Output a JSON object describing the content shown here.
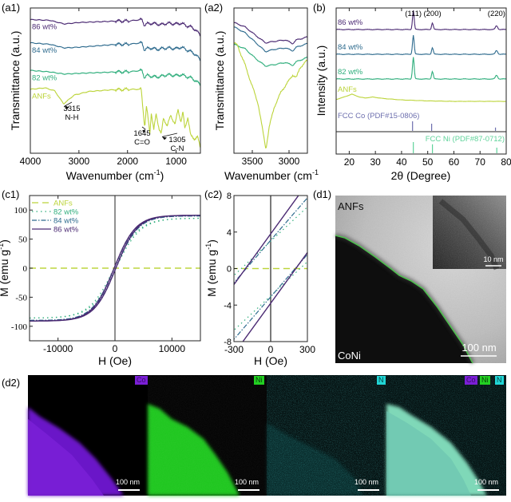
{
  "figure": {
    "panels": {
      "a1": {
        "label": "(a1)"
      },
      "a2": {
        "label": "(a2)"
      },
      "b": {
        "label": "(b)"
      },
      "c1": {
        "label": "(c1)"
      },
      "c2": {
        "label": "(c2)"
      },
      "d1": {
        "label": "(d1)",
        "text_top": "ANFs",
        "text_bottom": "CoNi",
        "scalebar": "100 nm",
        "inset_scalebar": "10 nm"
      },
      "d2": {
        "label": "(d2)",
        "maps": [
          {
            "element_labels": [
              "Co"
            ],
            "colors": [
              "#7a1fd6"
            ],
            "scalebar": "100 nm"
          },
          {
            "element_labels": [
              "Ni"
            ],
            "colors": [
              "#22d022"
            ],
            "scalebar": "100 nm"
          },
          {
            "element_labels": [
              "N"
            ],
            "colors": [
              "#21d6d6"
            ],
            "scalebar": "100 nm"
          },
          {
            "element_labels": [
              "Co",
              "Ni",
              "N"
            ],
            "colors": [
              "#7a1fd6",
              "#22d022",
              "#21d6d6"
            ],
            "scalebar": "100 nm"
          }
        ]
      }
    },
    "colors": {
      "ANFs": "#bcd43a",
      "82 wt%": "#2fae7c",
      "84 wt%": "#2e6b8e",
      "86 wt%": "#4b2a73",
      "fcc_co": "#6d6fae",
      "fcc_ni": "#5fd39a",
      "boundary": "#4fc04f"
    }
  },
  "chart_data": [
    {
      "id": "a1",
      "type": "line",
      "title": "",
      "xlabel": "Wavenumber (cm-1)",
      "ylabel": "Transmittance (a.u.)",
      "xlim": [
        4000,
        500
      ],
      "x_ticks": [
        "4000",
        "3000",
        "2000",
        "1000"
      ],
      "x_tick_values": [
        4000,
        3000,
        2000,
        1000
      ],
      "ylim": [
        0,
        10
      ],
      "series": [
        {
          "name": "86 wt%",
          "x": [
            4000,
            3600,
            3300,
            3000,
            2600,
            2200,
            2000,
            1700,
            1650,
            1600,
            1500,
            1400,
            1300,
            1200,
            1000,
            900,
            800,
            700,
            600,
            500
          ],
          "values": [
            9.2,
            9.15,
            8.9,
            9.0,
            9.05,
            9.1,
            9.1,
            9.2,
            8.8,
            8.9,
            8.95,
            8.9,
            8.85,
            8.95,
            8.9,
            8.95,
            8.8,
            8.7,
            8.5,
            8.1
          ]
        },
        {
          "name": "84 wt%",
          "x": [
            4000,
            3600,
            3300,
            3000,
            2600,
            2200,
            2000,
            1700,
            1650,
            1600,
            1500,
            1400,
            1300,
            1200,
            1000,
            900,
            800,
            700,
            600,
            500
          ],
          "values": [
            7.6,
            7.5,
            7.25,
            7.3,
            7.4,
            7.5,
            7.5,
            7.6,
            7.1,
            7.2,
            7.25,
            7.15,
            7.2,
            7.25,
            7.2,
            7.3,
            7.15,
            7.0,
            6.8,
            6.4
          ]
        },
        {
          "name": "82 wt%",
          "x": [
            4000,
            3600,
            3300,
            3000,
            2600,
            2200,
            2000,
            1700,
            1650,
            1600,
            1500,
            1400,
            1300,
            1200,
            1000,
            900,
            800,
            700,
            600,
            500
          ],
          "values": [
            5.7,
            5.6,
            5.45,
            5.5,
            5.55,
            5.6,
            5.6,
            5.7,
            5.2,
            5.35,
            5.3,
            5.25,
            5.3,
            5.4,
            5.35,
            5.4,
            5.3,
            5.2,
            5.0,
            4.7
          ]
        },
        {
          "name": "ANFs",
          "x": [
            4000,
            3700,
            3500,
            3315,
            3100,
            2800,
            2400,
            2000,
            1720,
            1680,
            1645,
            1610,
            1540,
            1510,
            1460,
            1410,
            1350,
            1305,
            1260,
            1180,
            1110,
            1020,
            960,
            900,
            860,
            820,
            760,
            700,
            620,
            560,
            500
          ],
          "values": [
            4.4,
            4.5,
            4.3,
            3.4,
            4.0,
            4.25,
            4.35,
            4.4,
            4.4,
            3.0,
            1.8,
            3.2,
            1.4,
            2.8,
            1.6,
            2.7,
            1.7,
            1.3,
            2.4,
            1.9,
            2.6,
            2.0,
            3.0,
            2.2,
            2.8,
            1.7,
            2.5,
            1.2,
            1.0,
            1.1,
            0.4
          ]
        }
      ],
      "annotations": [
        {
          "x": 3315,
          "text": [
            "3315",
            "N-H"
          ]
        },
        {
          "x": 1645,
          "text": [
            "1645",
            "C=O"
          ]
        },
        {
          "x": 1305,
          "text": [
            "1305",
            "C-N"
          ]
        }
      ]
    },
    {
      "id": "a2",
      "type": "line",
      "title": "",
      "xlabel": "Wavenumber (cm-1)",
      "ylabel": "Transmittance (a.u.)",
      "xlim": [
        3750,
        2750
      ],
      "x_ticks": [
        "3500",
        "3000"
      ],
      "x_tick_values": [
        3500,
        3000
      ],
      "ylim": [
        0,
        10
      ],
      "series": [
        {
          "name": "86 wt%",
          "x": [
            3750,
            3600,
            3450,
            3320,
            3200,
            3050,
            2950,
            2900,
            2750
          ],
          "values": [
            9.0,
            8.7,
            8.1,
            7.6,
            7.7,
            7.8,
            7.55,
            7.8,
            8.0
          ]
        },
        {
          "name": "84 wt%",
          "x": [
            3750,
            3600,
            3450,
            3320,
            3200,
            3050,
            2950,
            2900,
            2750
          ],
          "values": [
            8.7,
            8.3,
            7.6,
            7.0,
            7.15,
            7.25,
            7.05,
            7.3,
            7.55
          ]
        },
        {
          "name": "82 wt%",
          "x": [
            3750,
            3600,
            3450,
            3320,
            3200,
            3050,
            2950,
            2900,
            2750
          ],
          "values": [
            7.5,
            7.2,
            6.5,
            6.0,
            6.1,
            6.25,
            6.05,
            6.3,
            6.6
          ]
        },
        {
          "name": "ANFs",
          "x": [
            3750,
            3700,
            3600,
            3500,
            3420,
            3360,
            3315,
            3270,
            3200,
            3100,
            3000,
            2950,
            2900,
            2850,
            2750
          ],
          "values": [
            7.6,
            7.4,
            6.1,
            4.6,
            3.4,
            1.6,
            0.3,
            1.8,
            3.2,
            4.3,
            5.0,
            5.4,
            5.2,
            5.9,
            6.4
          ]
        }
      ]
    },
    {
      "id": "b",
      "type": "line",
      "title": "",
      "xlabel": "2θ (Degree)",
      "ylabel": "Intensity (a.u.)",
      "xlim": [
        15,
        80
      ],
      "x_ticks": [
        "20",
        "30",
        "40",
        "50",
        "60",
        "70",
        "80"
      ],
      "x_tick_values": [
        20,
        30,
        40,
        50,
        60,
        70,
        80
      ],
      "peak_labels": [
        {
          "x": 44.5,
          "text": "(111)"
        },
        {
          "x": 51.8,
          "text": "(200)"
        },
        {
          "x": 76.3,
          "text": "(220)"
        }
      ],
      "series": [
        {
          "name": "86 wt%",
          "peaks": [
            {
              "x": 44.5,
              "h": 1.0
            },
            {
              "x": 51.8,
              "h": 0.35
            },
            {
              "x": 76.3,
              "h": 0.2
            }
          ]
        },
        {
          "name": "84 wt%",
          "peaks": [
            {
              "x": 44.5,
              "h": 1.0
            },
            {
              "x": 51.8,
              "h": 0.35
            },
            {
              "x": 76.3,
              "h": 0.2
            }
          ]
        },
        {
          "name": "82 wt%",
          "peaks": [
            {
              "x": 44.5,
              "h": 1.15
            },
            {
              "x": 51.8,
              "h": 0.4
            },
            {
              "x": 76.3,
              "h": 0.2
            }
          ]
        },
        {
          "name": "ANFs",
          "x": [
            15,
            18,
            21,
            24,
            26,
            29,
            33,
            40,
            50,
            60,
            70,
            80
          ],
          "values": [
            0.2,
            0.45,
            0.75,
            0.45,
            0.35,
            0.45,
            0.3,
            0.15,
            0.05,
            0.0,
            0.0,
            0.0
          ]
        }
      ],
      "references": [
        {
          "name": "FCC Co (PDF#15-0806)",
          "lines": [
            {
              "x": 44.2,
              "h": 1.0
            },
            {
              "x": 51.5,
              "h": 0.75
            },
            {
              "x": 75.9,
              "h": 0.35
            }
          ]
        },
        {
          "name": "FCC Ni (PDF#87-0712)",
          "lines": [
            {
              "x": 44.5,
              "h": 1.0
            },
            {
              "x": 51.8,
              "h": 0.8
            },
            {
              "x": 76.4,
              "h": 0.5
            }
          ]
        }
      ]
    },
    {
      "id": "c1",
      "type": "line",
      "title": "",
      "xlabel": "H (Oe)",
      "ylabel": "M (emu g-1)",
      "xlim": [
        -15000,
        15000
      ],
      "ylim": [
        -125,
        125
      ],
      "x_ticks": [
        "-10000",
        "0",
        "10000"
      ],
      "x_tick_values": [
        -10000,
        0,
        10000
      ],
      "y_ticks": [
        "100",
        "50",
        "0",
        "-50",
        "-100"
      ],
      "y_tick_values": [
        100,
        50,
        0,
        -50,
        -100
      ],
      "legend": "top-left",
      "series": [
        {
          "name": "ANFs",
          "style": "dashed",
          "Ms": 0,
          "Hk": 4000
        },
        {
          "name": "82 wt%",
          "style": "dotted",
          "Ms": 86,
          "Hk": 4300
        },
        {
          "name": "84 wt%",
          "style": "dashdot",
          "Ms": 90,
          "Hk": 3900
        },
        {
          "name": "86 wt%",
          "style": "solid",
          "Ms": 91,
          "Hk": 3800
        }
      ]
    },
    {
      "id": "c2",
      "type": "line",
      "title": "",
      "xlabel": "H (Oe)",
      "ylabel": "M (emu g-1)",
      "xlim": [
        -300,
        300
      ],
      "ylim": [
        -8,
        8
      ],
      "x_ticks": [
        "-300",
        "0",
        "300"
      ],
      "x_tick_values": [
        -300,
        0,
        300
      ],
      "y_ticks": [
        "8",
        "4",
        "0",
        "-4",
        "-8"
      ],
      "y_tick_values": [
        8,
        4,
        0,
        -4,
        -8
      ],
      "series": [
        {
          "name": "ANFs",
          "style": "dashed",
          "Mr": 0,
          "slope": 0
        },
        {
          "name": "82 wt%",
          "style": "dotted",
          "Mr": 3.0,
          "slope": 0.0125
        },
        {
          "name": "84 wt%",
          "style": "dashdot",
          "Mr": 3.1,
          "slope": 0.0155
        },
        {
          "name": "86 wt%",
          "style": "solid",
          "Mr": 3.8,
          "slope": 0.0185
        }
      ]
    }
  ]
}
